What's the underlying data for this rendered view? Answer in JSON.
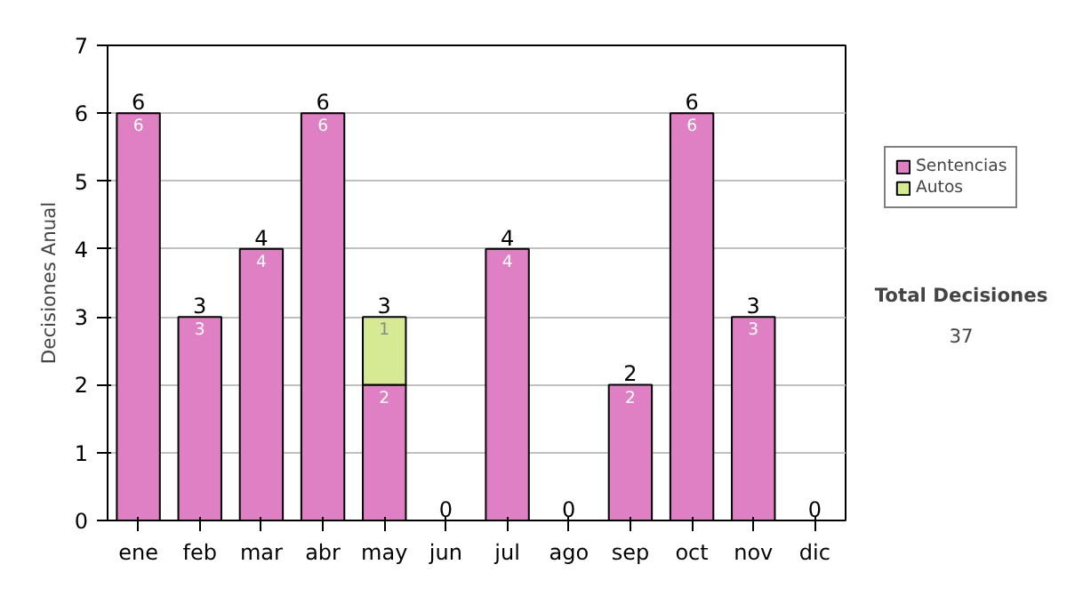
{
  "chart_data": {
    "type": "bar",
    "stacked": true,
    "ylabel": "Decisiones Anual",
    "categories": [
      "ene",
      "feb",
      "mar",
      "abr",
      "may",
      "jun",
      "jul",
      "ago",
      "sep",
      "oct",
      "nov",
      "dic"
    ],
    "series": [
      {
        "name": "Sentencias",
        "color": "#df7fc4",
        "values": [
          6,
          3,
          4,
          6,
          2,
          0,
          4,
          0,
          2,
          6,
          3,
          0
        ],
        "value_labels": [
          "6",
          "3",
          "4",
          "6",
          "2",
          null,
          "4",
          null,
          "2",
          "6",
          "3",
          null
        ]
      },
      {
        "name": "Autos",
        "color": "#d6ea94",
        "values": [
          0,
          0,
          0,
          0,
          1,
          0,
          0,
          0,
          0,
          0,
          0,
          0
        ],
        "value_labels": [
          null,
          null,
          null,
          null,
          "1",
          null,
          null,
          null,
          null,
          null,
          null,
          null
        ]
      }
    ],
    "totals": [
      "6",
      "3",
      "4",
      "6",
      "3",
      "0",
      "4",
      "0",
      "2",
      "6",
      "3",
      "0"
    ],
    "ylim": [
      0,
      7
    ],
    "yticks": [
      0,
      1,
      2,
      3,
      4,
      5,
      6,
      7
    ],
    "grid": "y",
    "legend": "right",
    "annotations": [
      "Total Decisiones",
      "37"
    ]
  }
}
